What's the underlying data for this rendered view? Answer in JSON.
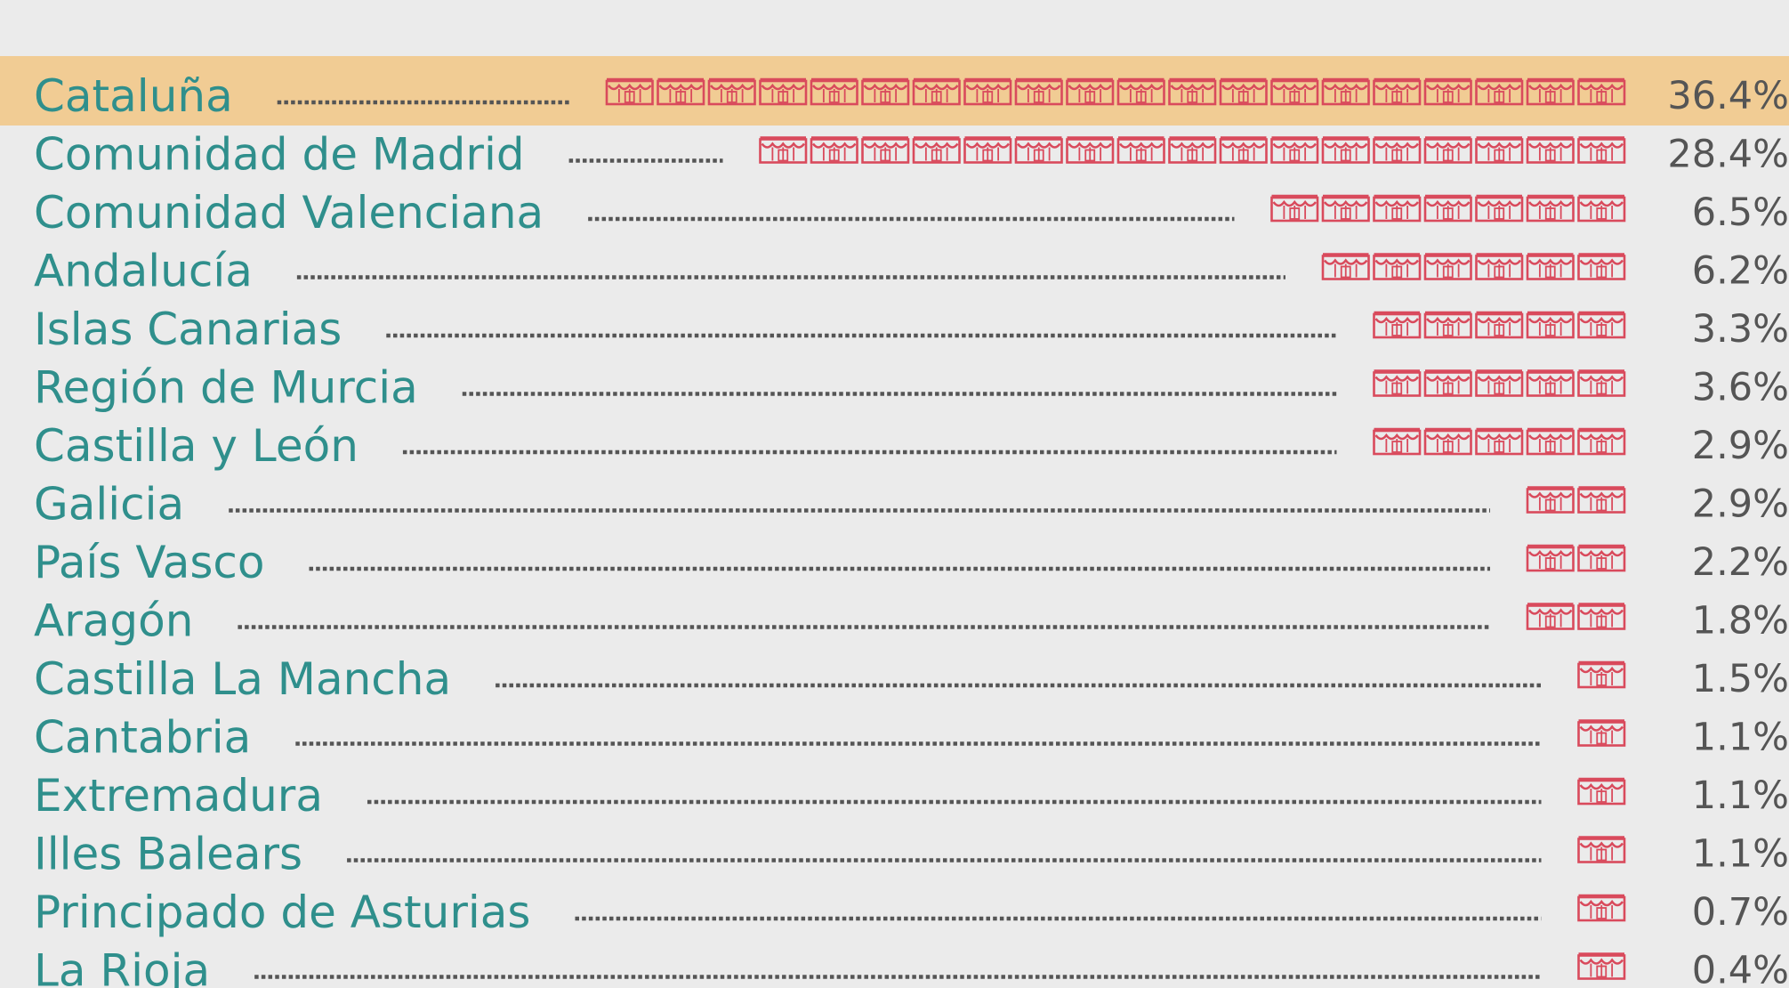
{
  "chart_data": {
    "type": "bar",
    "style": "pictogram",
    "title": "",
    "xlabel": "",
    "ylabel": "",
    "icon": "shop-awning-icon",
    "categories": [
      "Cataluña",
      "Comunidad de Madrid",
      "Comunidad Valenciana",
      "Andalucía",
      "Islas Canarias",
      "Región de Murcia",
      "Castilla y León",
      "Galicia",
      "País Vasco",
      "Aragón",
      "Castilla La Mancha",
      "Cantabria",
      "Extremadura",
      "Illes Balears",
      "Principado de Asturias",
      "La Rioja"
    ],
    "values": [
      36.4,
      28.4,
      6.5,
      6.2,
      3.3,
      3.6,
      2.9,
      2.9,
      2.2,
      1.8,
      1.5,
      1.1,
      1.1,
      1.1,
      0.7,
      0.4
    ],
    "value_labels": [
      "36.4%",
      "28.4%",
      "6.5%",
      "6.2%",
      "3.3%",
      "3.6%",
      "2.9%",
      "2.9%",
      "2.2%",
      "1.8%",
      "1.5%",
      "1.1%",
      "1.1%",
      "1.1%",
      "0.7%",
      "0.4%"
    ],
    "icon_counts": [
      20,
      17,
      7,
      6,
      5,
      5,
      5,
      2,
      2,
      2,
      1,
      1,
      1,
      1,
      1,
      1
    ],
    "highlighted": "Cataluña"
  },
  "colors": {
    "background": "#ebebeb",
    "highlight": "#f1cc94",
    "label": "#2f8f8c",
    "value": "#555555",
    "icon": "#d94a5c",
    "leader": "#555555"
  }
}
